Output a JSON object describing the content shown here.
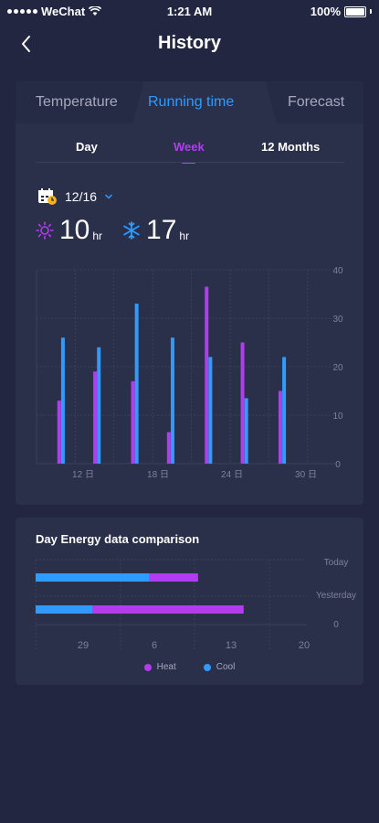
{
  "status_bar": {
    "carrier": "WeChat",
    "time": "1:21 AM",
    "battery": "100%"
  },
  "header": {
    "title": "History"
  },
  "tabs": [
    {
      "label": "Temperature",
      "active": false
    },
    {
      "label": "Running time",
      "active": true
    },
    {
      "label": "Forecast",
      "active": false
    }
  ],
  "periods": [
    {
      "label": "Day",
      "active": false
    },
    {
      "label": "Week",
      "active": true
    },
    {
      "label": "12 Months",
      "active": false
    }
  ],
  "date": {
    "value": "12/16"
  },
  "summary": {
    "heat": {
      "value": "10",
      "unit": "hr"
    },
    "cool": {
      "value": "17",
      "unit": "hr"
    }
  },
  "colors": {
    "heat": "#b23cf0",
    "cool": "#2f9bff",
    "accent": "#2f9bff",
    "background": "#222640",
    "card": "#2a2f4a"
  },
  "chart_data": [
    {
      "type": "bar",
      "categories": [
        "10",
        "11",
        "12",
        "13",
        "14",
        "15",
        "16",
        "17",
        "18",
        "19",
        "20",
        "21",
        "22",
        "23",
        "24",
        "25",
        "26",
        "27",
        "28",
        "29",
        "30",
        "31"
      ],
      "x_tick_labels": [
        "12 日",
        "18 日",
        "24 日",
        "30 日"
      ],
      "ylim": [
        0,
        40
      ],
      "y_ticks": [
        "0",
        "10",
        "20",
        "30",
        "40"
      ],
      "grid": true,
      "series": [
        {
          "name": "Heat",
          "color": "#b23cf0",
          "points": [
            {
              "x": 11.1,
              "value": 13
            },
            {
              "x": 13.0,
              "value": 19
            },
            {
              "x": 15.0,
              "value": 17
            },
            {
              "x": 16.9,
              "value": 6.5
            },
            {
              "x": 18.9,
              "value": 36.5
            },
            {
              "x": 20.8,
              "value": 25
            },
            {
              "x": 22.8,
              "value": 15
            }
          ]
        },
        {
          "name": "Cool",
          "color": "#2f9bff",
          "points": [
            {
              "x": 11.3,
              "value": 26
            },
            {
              "x": 13.2,
              "value": 24
            },
            {
              "x": 15.2,
              "value": 33
            },
            {
              "x": 17.1,
              "value": 26
            },
            {
              "x": 19.1,
              "value": 22
            },
            {
              "x": 21.0,
              "value": 13.5
            },
            {
              "x": 23.0,
              "value": 22
            }
          ]
        }
      ]
    },
    {
      "type": "bar",
      "orientation": "horizontal",
      "title": "Day Energy data comparison",
      "x_tick_labels": [
        "29",
        "6",
        "13",
        "20"
      ],
      "right_labels": [
        "Today",
        "Yesterday",
        "0"
      ],
      "rows": [
        {
          "label": "Today",
          "cool": 20,
          "heat": 8.5
        },
        {
          "label": "Yesterday",
          "cool": 10,
          "heat": 26.5
        }
      ],
      "xlim": [
        0,
        40
      ],
      "legend": [
        {
          "label": "Heat",
          "color": "#b23cf0"
        },
        {
          "label": "Cool",
          "color": "#2f9bff"
        }
      ],
      "legend_position": "bottom"
    }
  ]
}
